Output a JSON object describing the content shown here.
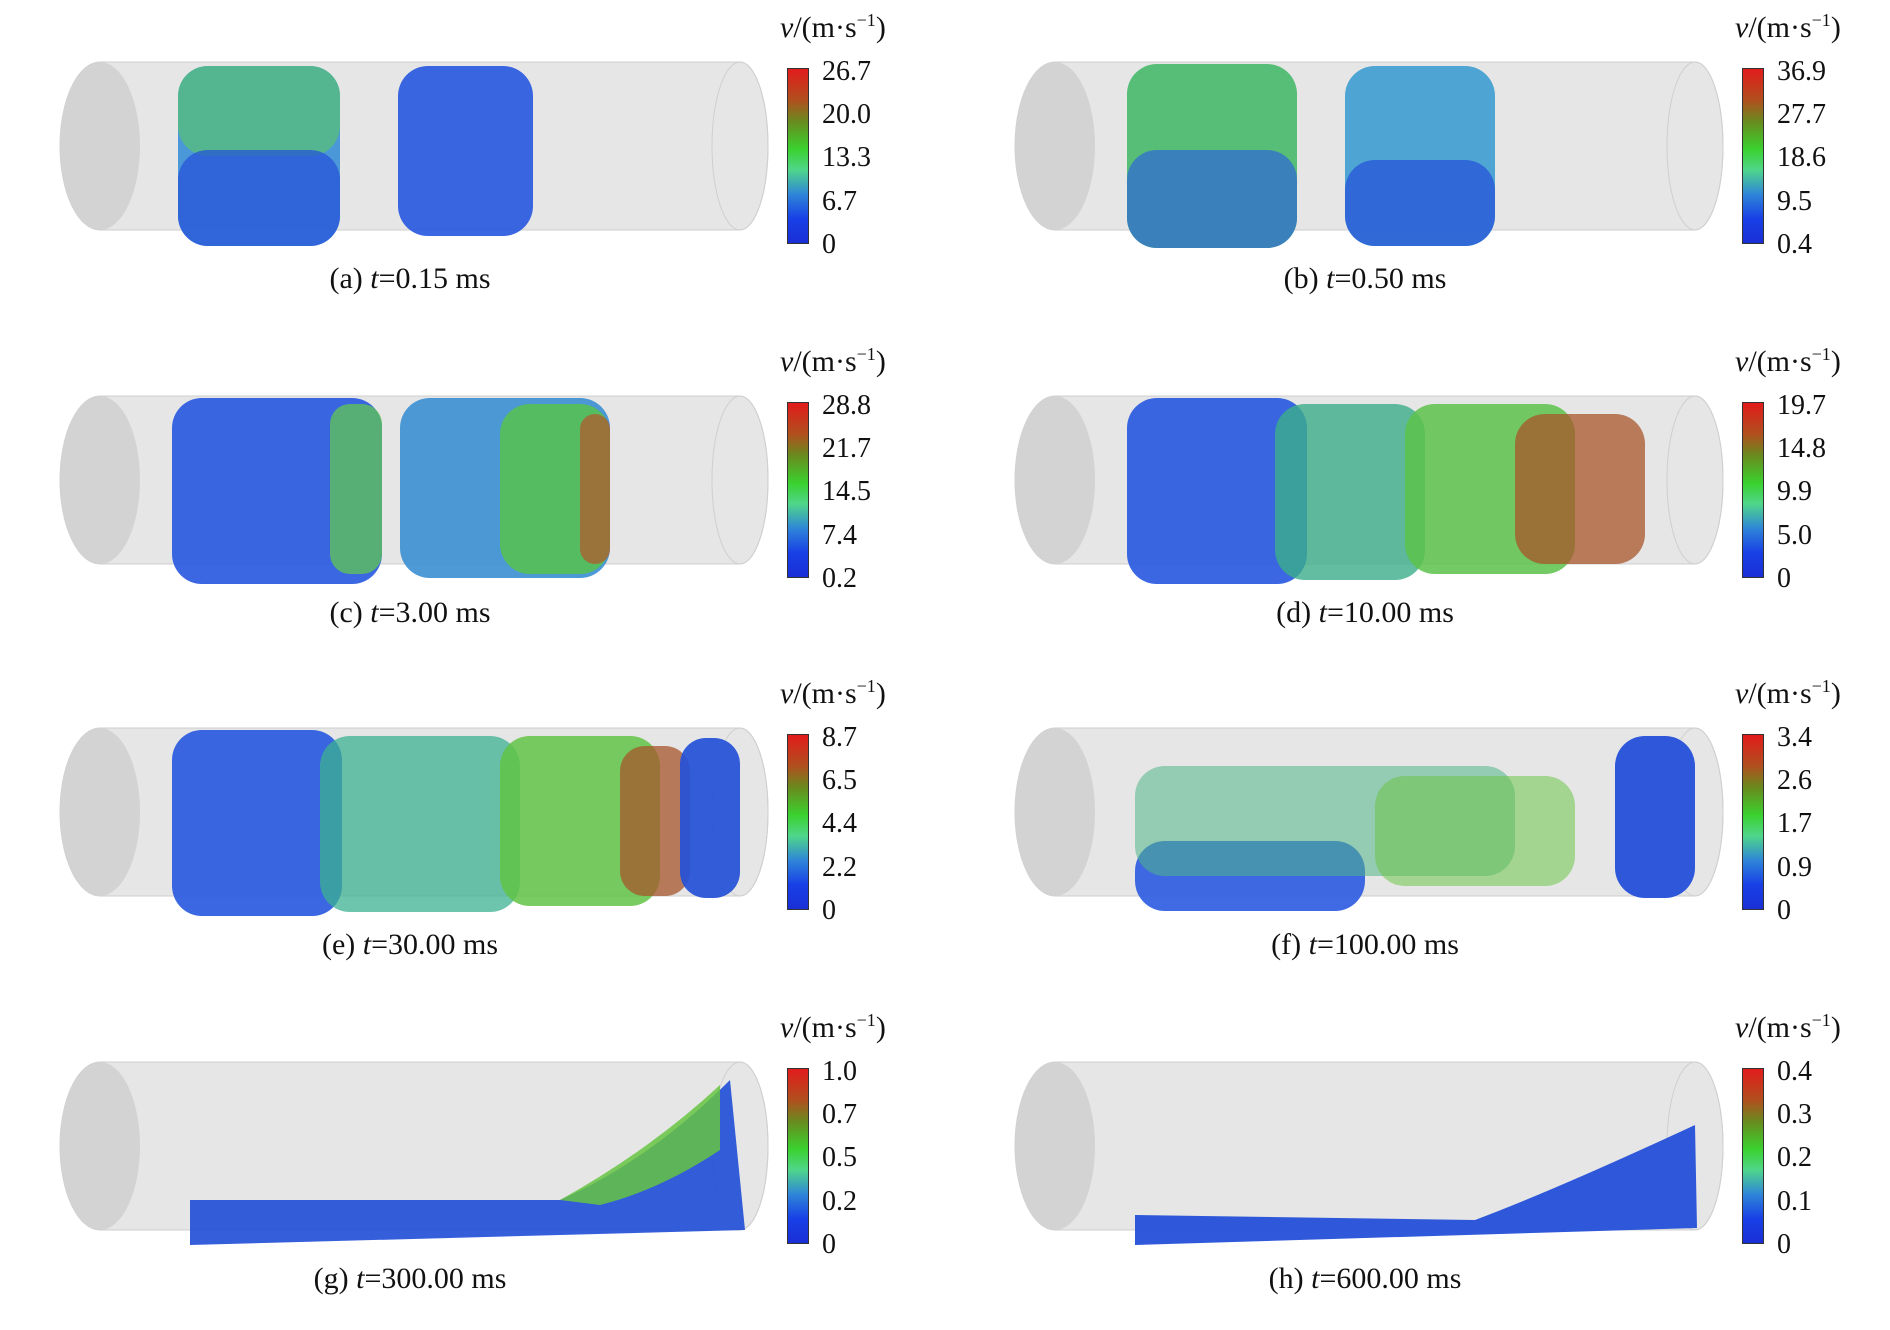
{
  "unit_label": {
    "var": "v",
    "rest": "/(m·s",
    "exp": "−1",
    "close": ")"
  },
  "panels": [
    {
      "letter": "(a)",
      "time": "0.15 ms",
      "ticks": [
        "26.7",
        "20.0",
        "13.3",
        "6.7",
        "0"
      ]
    },
    {
      "letter": "(b)",
      "time": "0.50 ms",
      "ticks": [
        "36.9",
        "27.7",
        "18.6",
        "9.5",
        "0.4"
      ]
    },
    {
      "letter": "(c)",
      "time": "3.00 ms",
      "ticks": [
        "28.8",
        "21.7",
        "14.5",
        "7.4",
        "0.2"
      ]
    },
    {
      "letter": "(d)",
      "time": "10.00 ms",
      "ticks": [
        "19.7",
        "14.8",
        "9.9",
        "5.0",
        "0"
      ]
    },
    {
      "letter": "(e)",
      "time": "30.00 ms",
      "ticks": [
        "8.7",
        "6.5",
        "4.4",
        "2.2",
        "0"
      ]
    },
    {
      "letter": "(f)",
      "time": "100.00 ms",
      "ticks": [
        "3.4",
        "2.6",
        "1.7",
        "0.9",
        "0"
      ]
    },
    {
      "letter": "(g)",
      "time": "300.00 ms",
      "ticks": [
        "1.0",
        "0.7",
        "0.5",
        "0.2",
        "0"
      ]
    },
    {
      "letter": "(h)",
      "time": "600.00 ms",
      "ticks": [
        "0.4",
        "0.3",
        "0.2",
        "0.1",
        "0"
      ]
    }
  ]
}
